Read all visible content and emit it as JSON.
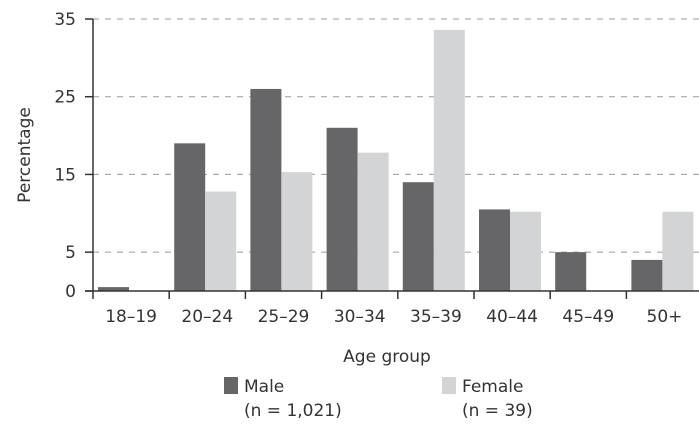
{
  "chart_data": {
    "type": "bar",
    "title": "",
    "xlabel": "Age group",
    "ylabel": "Percentage",
    "ylim": [
      0,
      35
    ],
    "yticks": [
      0,
      5,
      15,
      25,
      35
    ],
    "grid": "dashed horizontal at y ticks",
    "legend_position": "bottom",
    "categories": [
      "18–19",
      "20–24",
      "25–29",
      "30–34",
      "35–39",
      "40–44",
      "45–49",
      "50+"
    ],
    "series": [
      {
        "name": "Male",
        "note": "(n = 1,021)",
        "color": "#666669",
        "values": [
          0.5,
          19,
          26,
          21,
          14,
          10.5,
          5,
          4
        ]
      },
      {
        "name": "Female",
        "note": "(n = 39)",
        "color": "#d3d4d6",
        "values": [
          0,
          12.8,
          15.3,
          17.8,
          33.6,
          10.2,
          0,
          10.2
        ]
      }
    ]
  }
}
